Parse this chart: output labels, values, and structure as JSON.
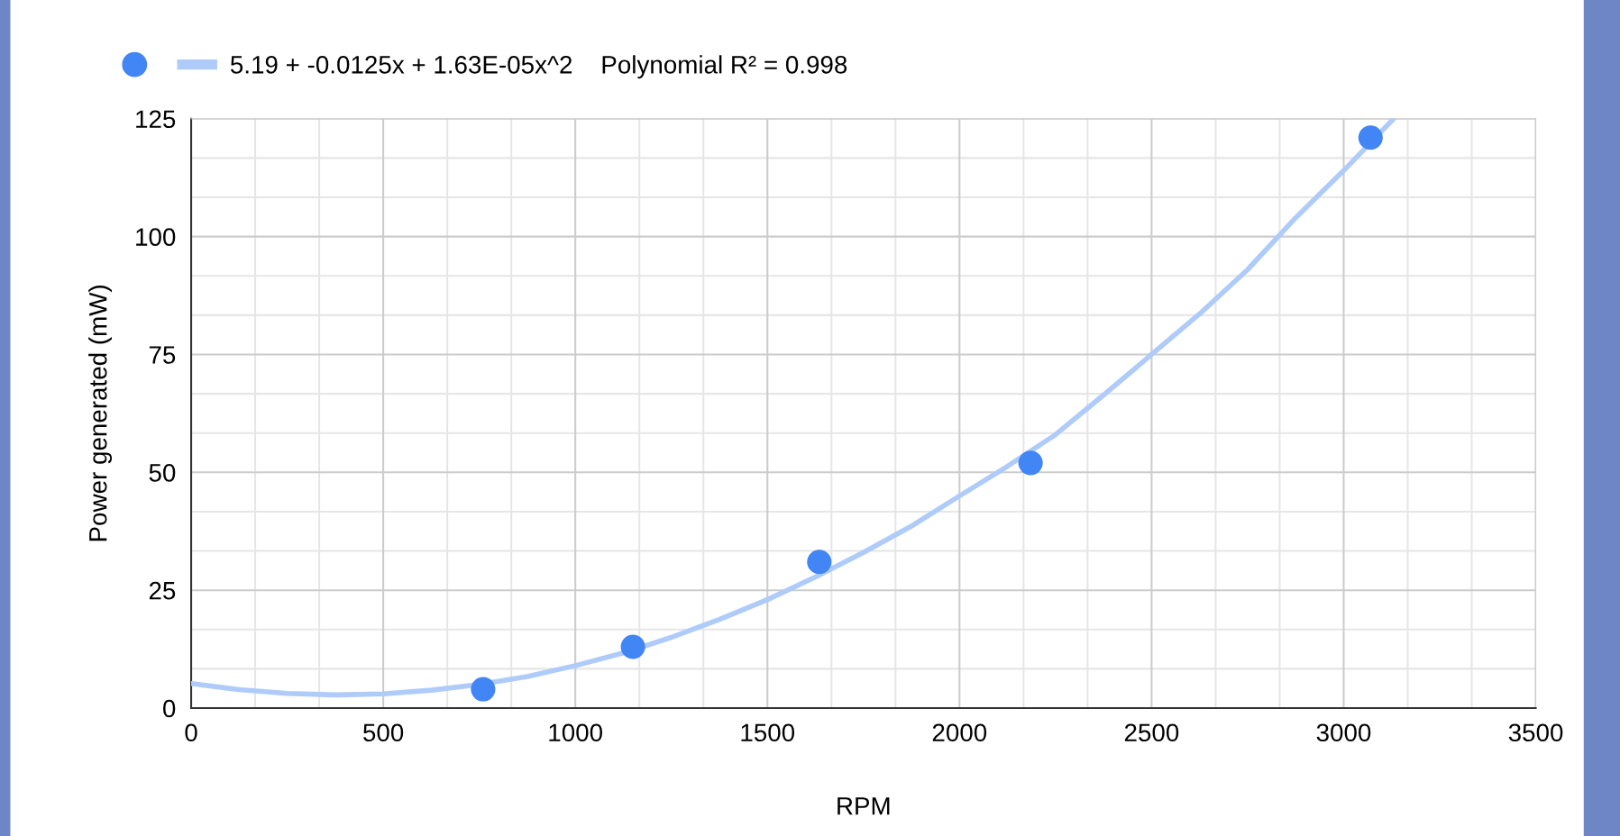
{
  "chart_data": {
    "type": "scatter",
    "xlabel": "RPM",
    "ylabel": "Power generated (mW)",
    "series": [
      {
        "color": "#4285f4",
        "marker": "circle",
        "x": [
          760,
          1150,
          1635,
          2185,
          3070
        ],
        "values": [
          4,
          13,
          31,
          52,
          121
        ]
      },
      {
        "type": "line",
        "name": "5.19 + -0.0125x + 1.63E-05x^2    Polynomial R² = 0.998",
        "color": "#aecbfa",
        "x": [
          0,
          125,
          250,
          375,
          500,
          625,
          750,
          875,
          1000,
          1125,
          1250,
          1375,
          1500,
          1625,
          1750,
          1875,
          2000,
          2125,
          2250,
          2375,
          2500,
          2625,
          2750,
          2875,
          3000,
          3130
        ],
        "values": [
          5.2,
          3.9,
          3.1,
          2.8,
          3,
          3.8,
          5,
          6.7,
          9,
          11.7,
          15,
          18.8,
          23,
          27.8,
          33,
          38.6,
          45,
          51.3,
          58,
          66.4,
          75,
          83.6,
          93,
          104,
          114,
          125
        ]
      }
    ],
    "xlim": [
      0,
      3500
    ],
    "xticks": [
      0,
      500,
      1000,
      1500,
      2000,
      2500,
      3000,
      3500
    ],
    "ylim": [
      0,
      125
    ],
    "yticks": [
      0,
      25,
      50,
      75,
      100,
      125
    ],
    "grid": true,
    "legend": "top left"
  }
}
